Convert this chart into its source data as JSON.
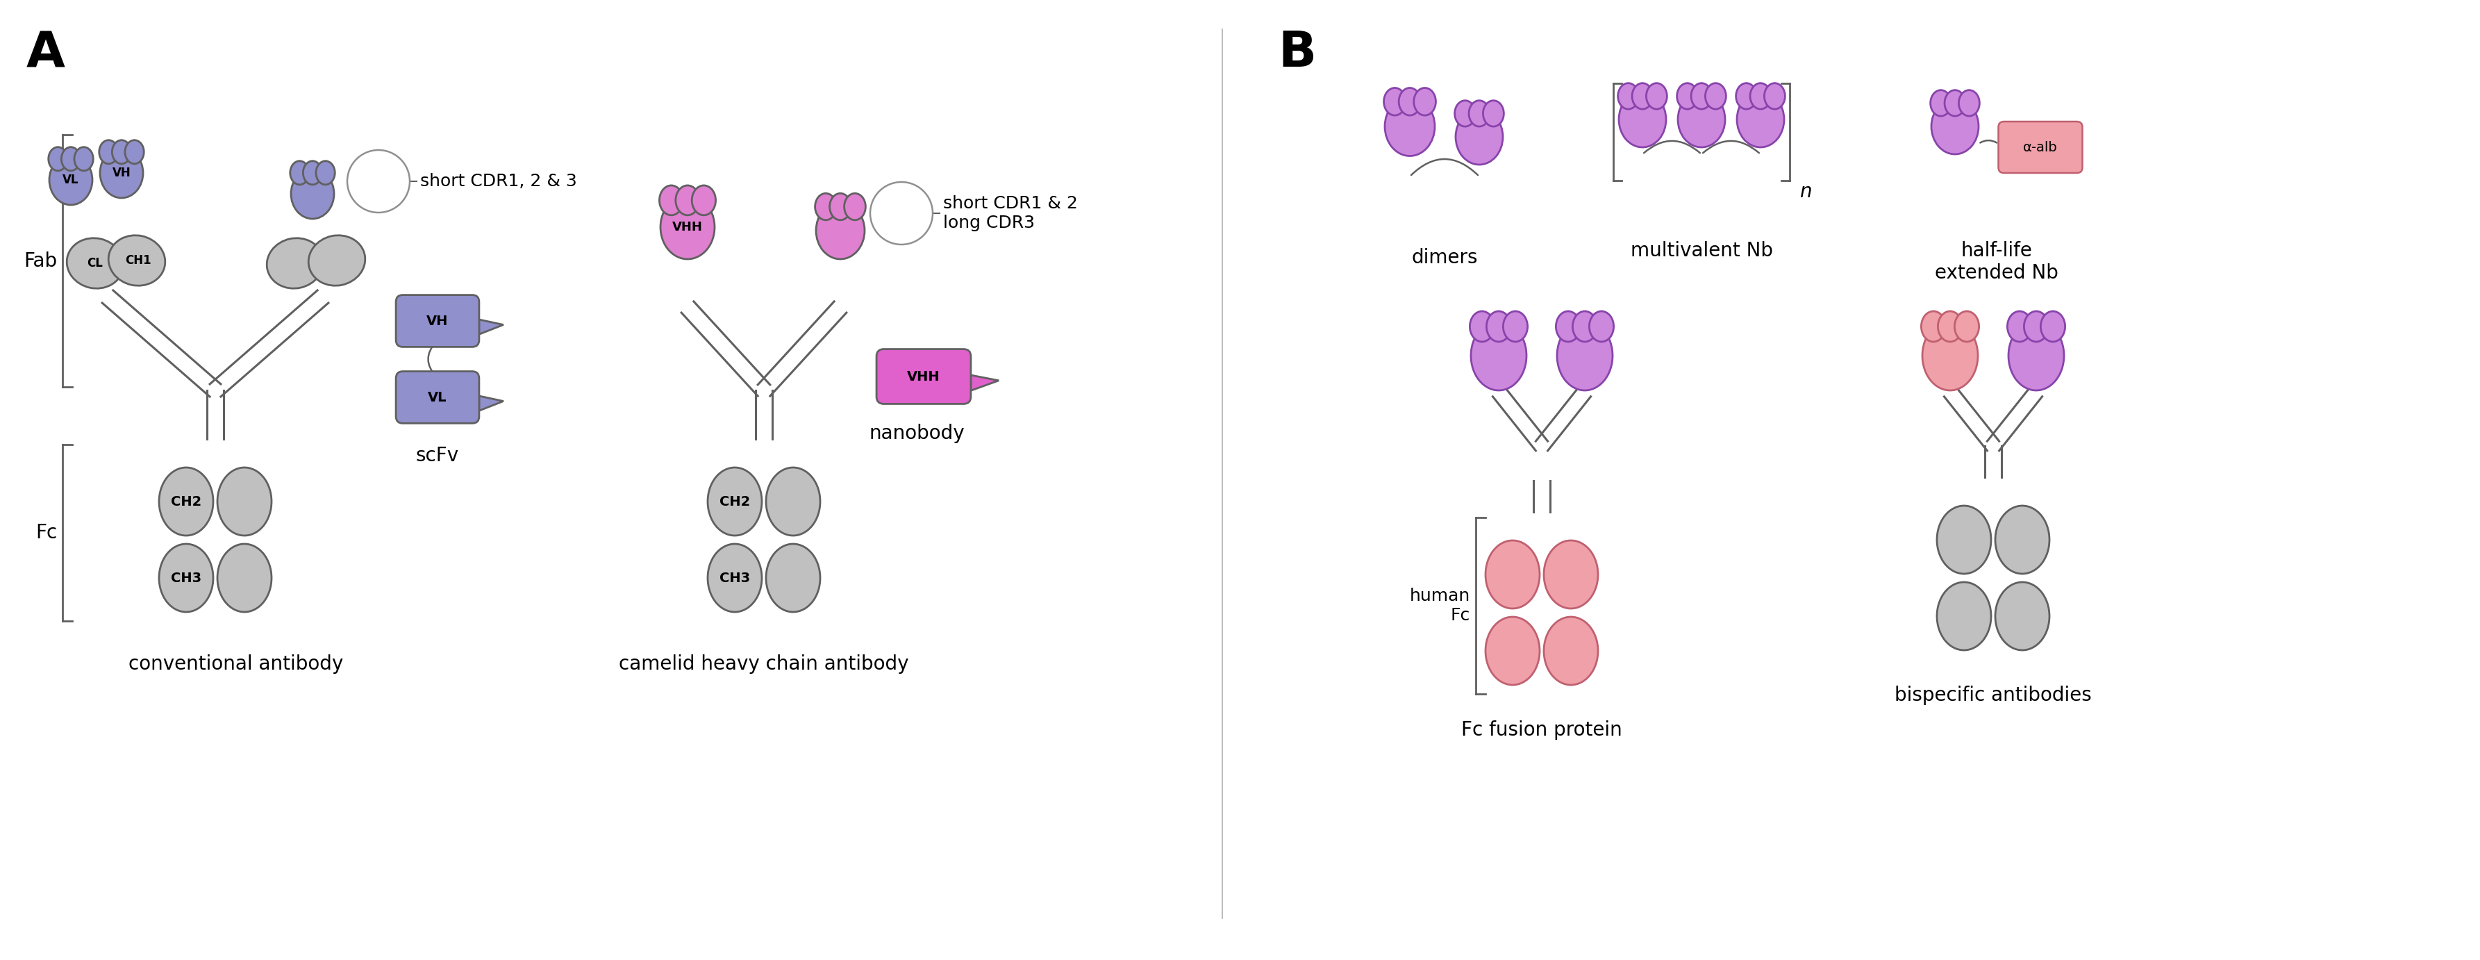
{
  "title_A": "A",
  "title_B": "B",
  "colors": {
    "blue_fill": "#9090cc",
    "blue_edge": "#5050a0",
    "gray_fill": "#c0c0c0",
    "gray_edge": "#606060",
    "pink_fill": "#e080d0",
    "pink_edge": "#a040a0",
    "salmon_fill": "#f0a0a8",
    "salmon_edge": "#c06070",
    "line_col": "#606060",
    "white": "#ffffff"
  },
  "labels": {
    "A": "A",
    "B": "B",
    "conventional": "conventional antibody",
    "camelid": "camelid heavy chain antibody",
    "scFv": "scFv",
    "nanobody": "nanobody",
    "Fab": "Fab",
    "Fc": "Fc",
    "VL": "VL",
    "VH": "VH",
    "CL": "CL",
    "CH1": "CH1",
    "CH2": "CH2",
    "CH3": "CH3",
    "VHH": "VHH",
    "short_cdr123": "short CDR1, 2 & 3",
    "short_cdr12_long3": "short CDR1 & 2\nlong CDR3",
    "dimers": "dimers",
    "multivalent": "multivalent Nb",
    "half_life": "half-life\nextended Nb",
    "fc_fusion": "Fc fusion protein",
    "bispecific": "bispecific antibodies",
    "human_Fc": "human\nFc",
    "alpha_alb": "α-alb",
    "n": "n"
  }
}
